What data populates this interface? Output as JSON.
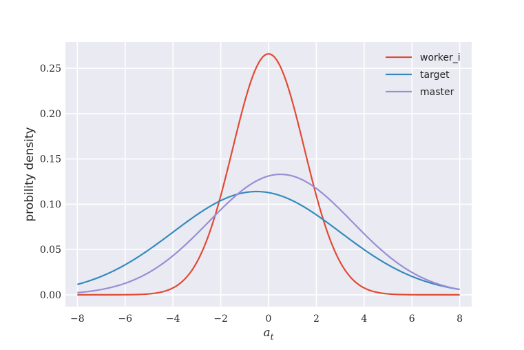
{
  "chart_data": {
    "type": "line",
    "title": "",
    "ylabel": "probility density",
    "xlabel_base": "a",
    "xlabel_sub": "t",
    "xlim": [
      -8.5,
      8.5
    ],
    "ylim": [
      -0.013,
      0.279
    ],
    "xticks": [
      -8,
      -6,
      -4,
      -2,
      0,
      2,
      4,
      6,
      8
    ],
    "xtick_labels": [
      "−8",
      "−6",
      "−4",
      "−2",
      "0",
      "2",
      "4",
      "6",
      "8"
    ],
    "yticks": [
      0.0,
      0.05,
      0.1,
      0.15,
      0.2,
      0.25
    ],
    "ytick_labels": [
      "0.00",
      "0.05",
      "0.10",
      "0.15",
      "0.20",
      "0.25"
    ],
    "grid": true,
    "legend_position": "top-right",
    "background_color": "#eaeaf2",
    "series": [
      {
        "name": "worker_i",
        "distribution": "normal",
        "mean": 0.0,
        "std": 1.5,
        "color": "#e24a33",
        "x_range": [
          -8,
          8
        ]
      },
      {
        "name": "target",
        "distribution": "normal",
        "mean": -0.5,
        "std": 3.5,
        "color": "#348abd",
        "x_range": [
          -8,
          8
        ]
      },
      {
        "name": "master",
        "distribution": "normal",
        "mean": 0.5,
        "std": 3.0,
        "color": "#988ed5",
        "x_range": [
          -8,
          8
        ]
      }
    ]
  }
}
